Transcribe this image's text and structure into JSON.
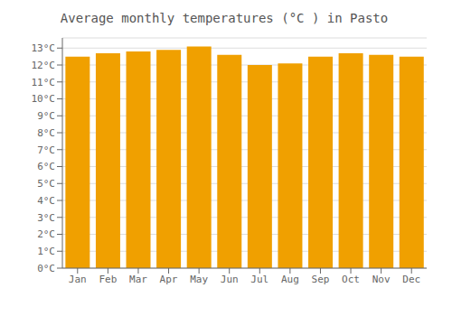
{
  "chart_data": {
    "type": "bar",
    "title": "Average monthly temperatures (°C ) in Pasto",
    "categories": [
      "Jan",
      "Feb",
      "Mar",
      "Apr",
      "May",
      "Jun",
      "Jul",
      "Aug",
      "Sep",
      "Oct",
      "Nov",
      "Dec"
    ],
    "values": [
      12.5,
      12.7,
      12.8,
      12.9,
      13.1,
      12.6,
      12.0,
      12.1,
      12.5,
      12.7,
      12.6,
      12.5
    ],
    "color": "#F0A000",
    "ylim": [
      0,
      13.6
    ],
    "yticks": [
      {
        "value": 0,
        "label": "0°C"
      },
      {
        "value": 1,
        "label": "1°C"
      },
      {
        "value": 2,
        "label": "2°C"
      },
      {
        "value": 3,
        "label": "3°C"
      },
      {
        "value": 4,
        "label": "4°C"
      },
      {
        "value": 5,
        "label": "5°C"
      },
      {
        "value": 6,
        "label": "6°C"
      },
      {
        "value": 7,
        "label": "7°C"
      },
      {
        "value": 8,
        "label": "8°C"
      },
      {
        "value": 9,
        "label": "9°C"
      },
      {
        "value": 10,
        "label": "10°C"
      },
      {
        "value": 11,
        "label": "11°C"
      },
      {
        "value": 12,
        "label": "12°C"
      },
      {
        "value": 13,
        "label": "13°C"
      }
    ],
    "grid": true
  }
}
